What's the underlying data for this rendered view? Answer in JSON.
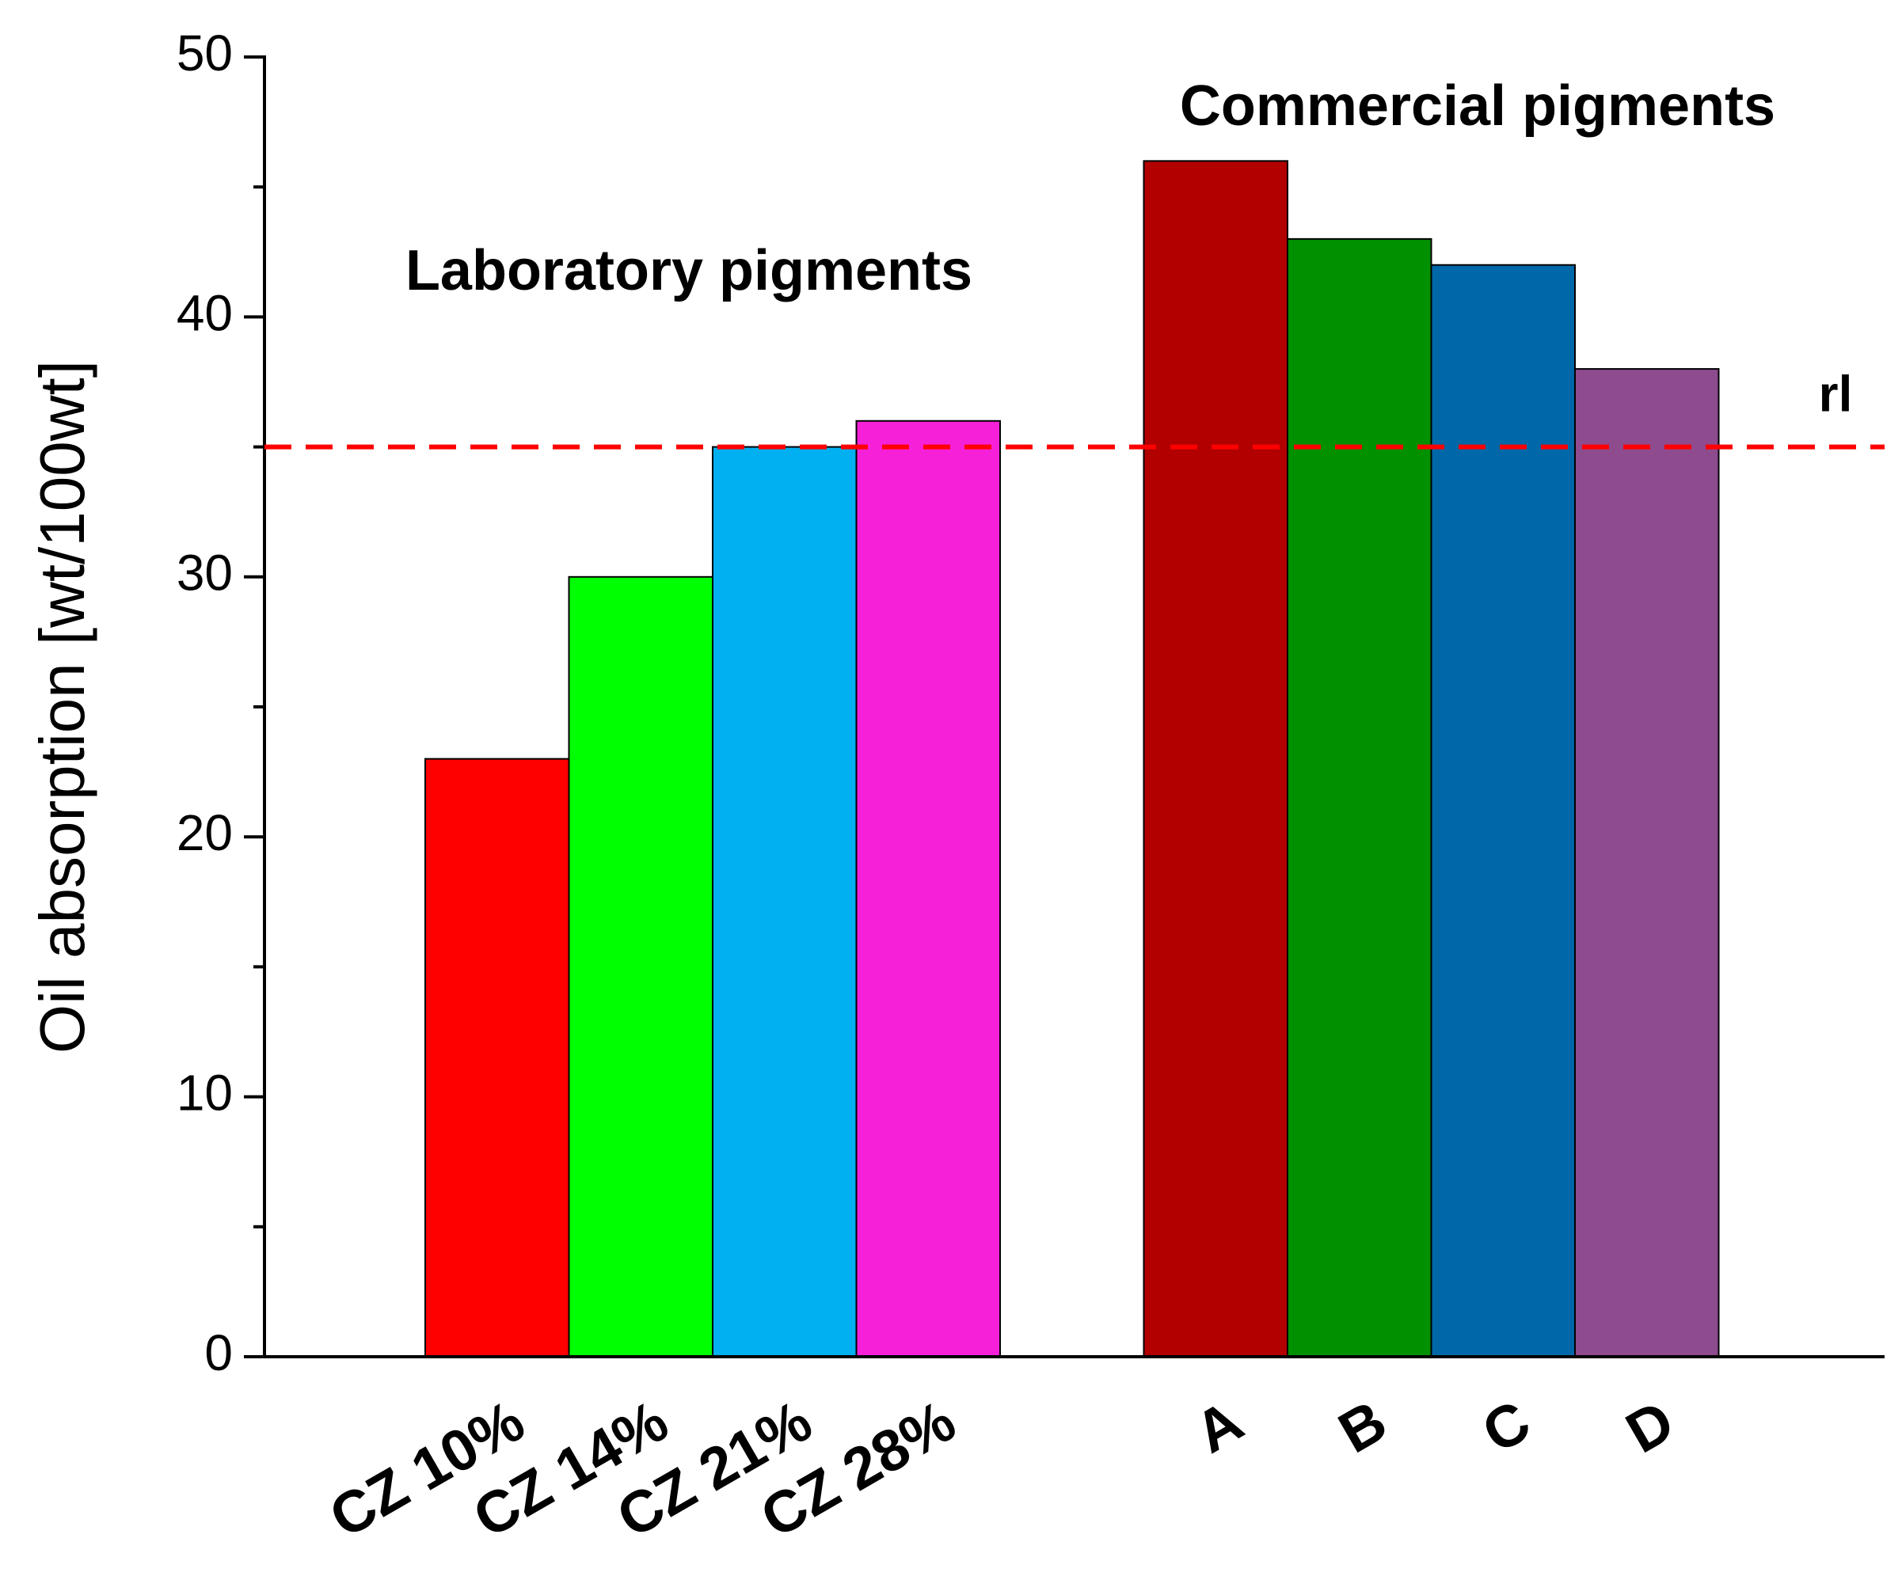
{
  "chart_data": {
    "type": "bar",
    "y_label": "Oil absorption [wt/100wt]",
    "categories": [
      "CZ 10%",
      "CZ 14%",
      "CZ 21%",
      "CZ 28%",
      "A",
      "B",
      "C",
      "D"
    ],
    "values": [
      23,
      30,
      35,
      36,
      46,
      43,
      42,
      38
    ],
    "colors": [
      "#ff0000",
      "#00ff00",
      "#00b0f0",
      "#f520d8",
      "#b20000",
      "#009000",
      "#0068a8",
      "#8e4b8e"
    ],
    "annotations": [
      "Laboratory pigments",
      "Commercial pigments"
    ],
    "reference_line": {
      "label": "rl",
      "value": 35,
      "color": "#ff0000"
    },
    "ylim": [
      0,
      50
    ],
    "yticks": [
      0,
      10,
      20,
      30,
      40,
      50
    ],
    "yminorticks": [
      5,
      15,
      25,
      35,
      45
    ],
    "grid": false
  }
}
